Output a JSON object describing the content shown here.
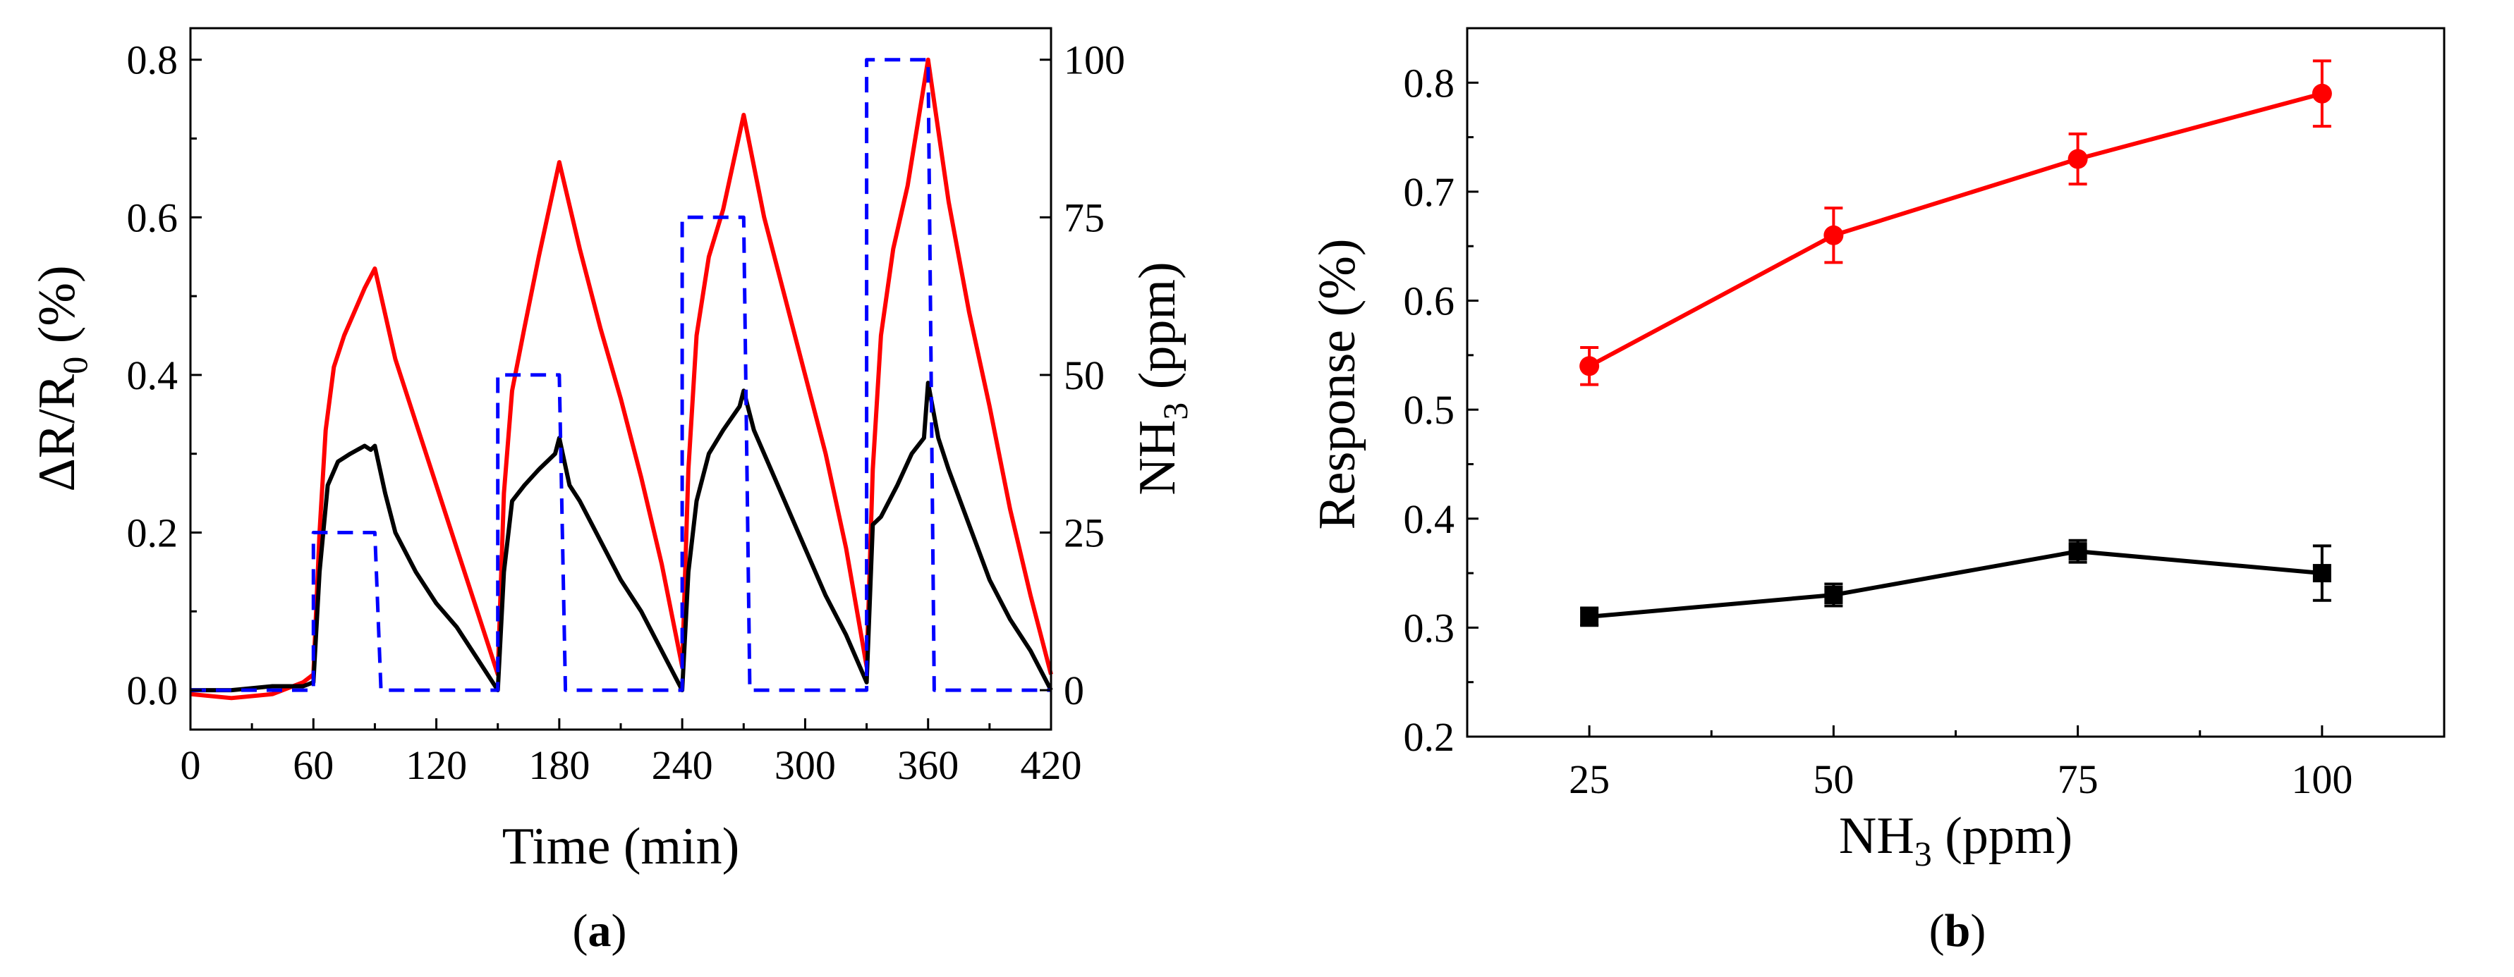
{
  "colors": {
    "red": "#ff0000",
    "black": "#000000",
    "blue": "#0000ff",
    "frame": "#000000"
  },
  "chart_data": [
    {
      "panel": "a",
      "panel_label": {
        "open": "(",
        "letter": "a",
        "close": ")"
      },
      "type": "line",
      "xlabel": "Time (min)",
      "ylabel_left": {
        "main": "ΔR/R",
        "sub": "0",
        "tail": " (%)"
      },
      "ylabel_right": {
        "main": "NH",
        "sub": "3",
        "tail": " (ppm)"
      },
      "xlim": [
        0,
        420
      ],
      "ylim_left": [
        -0.05,
        0.84
      ],
      "ylim_right": [
        -6.25,
        105
      ],
      "xticks": [
        0,
        60,
        120,
        180,
        240,
        300,
        360,
        420
      ],
      "yticks_left": [
        0.0,
        0.2,
        0.4,
        0.6,
        0.8
      ],
      "yticks_left_labels": [
        "0.0",
        "0.2",
        "0.4",
        "0.6",
        "0.8"
      ],
      "yticks_right": [
        0,
        25,
        50,
        75,
        100
      ],
      "series": [
        {
          "name": "red response",
          "axis": "left",
          "color": "#ff0000",
          "style": "solid",
          "x": [
            0,
            20,
            40,
            55,
            60,
            63,
            66,
            70,
            75,
            80,
            85,
            90,
            100,
            110,
            120,
            130,
            140,
            150,
            153,
            157,
            163,
            170,
            180,
            190,
            200,
            210,
            220,
            230,
            240,
            243,
            247,
            253,
            260,
            270,
            280,
            290,
            300,
            310,
            320,
            330,
            333,
            337,
            343,
            350,
            360,
            370,
            380,
            390,
            400,
            410,
            420
          ],
          "y": [
            -0.005,
            -0.01,
            -0.005,
            0.01,
            0.02,
            0.2,
            0.33,
            0.41,
            0.45,
            0.48,
            0.51,
            0.535,
            0.42,
            0.34,
            0.26,
            0.18,
            0.1,
            0.02,
            0.25,
            0.38,
            0.46,
            0.55,
            0.67,
            0.56,
            0.46,
            0.37,
            0.27,
            0.16,
            0.03,
            0.28,
            0.45,
            0.55,
            0.61,
            0.73,
            0.6,
            0.5,
            0.4,
            0.3,
            0.18,
            0.03,
            0.28,
            0.45,
            0.56,
            0.64,
            0.8,
            0.62,
            0.48,
            0.36,
            0.23,
            0.12,
            0.02
          ]
        },
        {
          "name": "black response",
          "axis": "left",
          "color": "#000000",
          "style": "solid",
          "x": [
            0,
            20,
            40,
            55,
            60,
            63,
            67,
            72,
            78,
            85,
            88,
            90,
            95,
            100,
            110,
            120,
            130,
            140,
            150,
            153,
            157,
            163,
            170,
            178,
            180,
            185,
            190,
            200,
            210,
            220,
            230,
            240,
            243,
            247,
            253,
            260,
            268,
            270,
            275,
            280,
            290,
            300,
            310,
            320,
            330,
            333,
            337,
            345,
            352,
            358,
            360,
            365,
            370,
            380,
            390,
            400,
            410,
            420
          ],
          "y": [
            0.0,
            0.0,
            0.005,
            0.005,
            0.01,
            0.15,
            0.26,
            0.29,
            0.3,
            0.31,
            0.305,
            0.31,
            0.25,
            0.2,
            0.15,
            0.11,
            0.08,
            0.04,
            0.0,
            0.15,
            0.24,
            0.26,
            0.28,
            0.3,
            0.32,
            0.26,
            0.24,
            0.19,
            0.14,
            0.1,
            0.05,
            0.0,
            0.15,
            0.24,
            0.3,
            0.33,
            0.36,
            0.38,
            0.33,
            0.3,
            0.24,
            0.18,
            0.12,
            0.07,
            0.01,
            0.21,
            0.22,
            0.26,
            0.3,
            0.32,
            0.39,
            0.32,
            0.28,
            0.21,
            0.14,
            0.09,
            0.05,
            0.0
          ]
        },
        {
          "name": "NH3 concentration",
          "axis": "right",
          "color": "#0000ff",
          "style": "dashed",
          "x": [
            0,
            60,
            60,
            90,
            93,
            150,
            150,
            180,
            183,
            240,
            240,
            270,
            273,
            330,
            330,
            360,
            363,
            420
          ],
          "y": [
            0,
            0,
            25,
            25,
            0,
            0,
            50,
            50,
            0,
            0,
            75,
            75,
            0,
            0,
            100,
            100,
            0,
            0
          ]
        }
      ]
    },
    {
      "panel": "b",
      "panel_label": {
        "open": "(",
        "letter": "b",
        "close": ")"
      },
      "type": "line",
      "xlabel": {
        "main": "NH",
        "sub": "3",
        "tail": " (ppm)"
      },
      "ylabel": "Response (%)",
      "xlim": [
        12.5,
        112.5
      ],
      "ylim": [
        0.2,
        0.85
      ],
      "xticks": [
        25,
        50,
        75,
        100
      ],
      "yticks": [
        0.2,
        0.3,
        0.4,
        0.5,
        0.6,
        0.7,
        0.8
      ],
      "yticks_labels": [
        "0.2",
        "0.3",
        "0.4",
        "0.5",
        "0.6",
        "0.7",
        "0.8"
      ],
      "series": [
        {
          "name": "red",
          "marker": "circle",
          "color": "#ff0000",
          "x": [
            25,
            50,
            75,
            100
          ],
          "y": [
            0.54,
            0.66,
            0.73,
            0.79
          ],
          "err": [
            0.017,
            0.025,
            0.023,
            0.03
          ]
        },
        {
          "name": "black",
          "marker": "square",
          "color": "#000000",
          "x": [
            25,
            50,
            75,
            100
          ],
          "y": [
            0.31,
            0.33,
            0.37,
            0.35
          ],
          "err": [
            0.008,
            0.01,
            0.01,
            0.025
          ]
        }
      ]
    }
  ]
}
